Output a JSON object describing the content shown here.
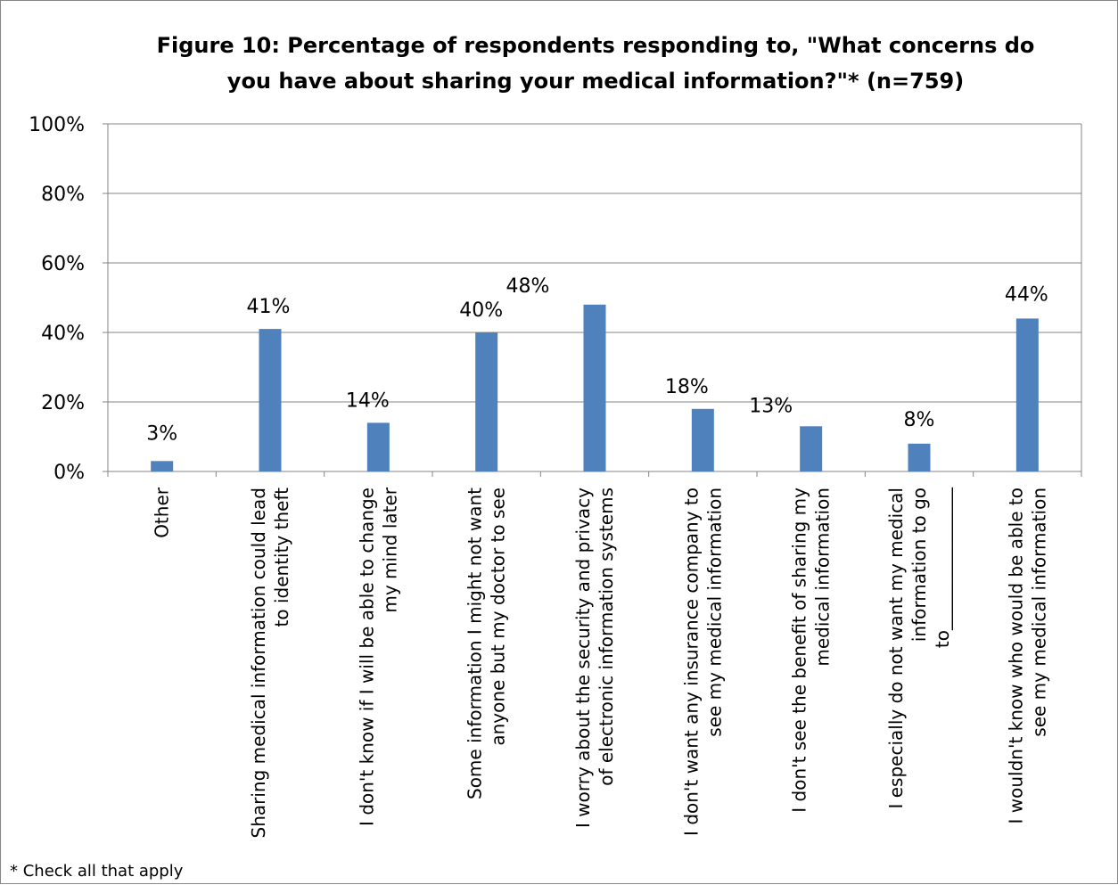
{
  "chart_data": {
    "type": "bar",
    "title": "Figure 10: Percentage of respondents responding to, \"What concerns do you have about sharing your medical information?\"* (n=759)",
    "title_lines": [
      "Figure 10: Percentage of respondents responding to, \"What concerns do",
      "you have about sharing your medical information?\"* (n=759)"
    ],
    "categories": [
      "Other",
      "Sharing medical information could lead to identity theft",
      "I don't know if I will be able to change my mind later",
      "Some information I might not want anyone but my doctor to see",
      "I worry about the security and privacy of electronic information systems",
      "I don't want any insurance company to see my medical information",
      "I don't see the benefit of sharing my medical information",
      "I especially do not want my medical information to go to________________",
      "I wouldn't know who would be able to see my medical information"
    ],
    "category_lines": [
      [
        "Other"
      ],
      [
        "Sharing medical information could lead",
        "to identity theft"
      ],
      [
        "I don't know if I will be able to change",
        "my mind later"
      ],
      [
        "Some information I might not want",
        "anyone but my doctor to see"
      ],
      [
        "I worry about the security and privacy",
        "of electronic information systems"
      ],
      [
        "I don't want any insurance company to",
        "see my medical information"
      ],
      [
        "I don't see the benefit of sharing my",
        "medical information"
      ],
      [
        "I especially do not want my medical",
        "information to go",
        "to________________"
      ],
      [
        "I wouldn't know who would be able to",
        "see my medical information"
      ]
    ],
    "values": [
      3,
      41,
      14,
      40,
      48,
      18,
      13,
      8,
      44
    ],
    "value_labels": [
      "3%",
      "41%",
      "14%",
      "40%",
      "48%",
      "18%",
      "13%",
      "8%",
      "44%"
    ],
    "ylim": [
      0,
      100
    ],
    "yticks": [
      0,
      20,
      40,
      60,
      80,
      100
    ],
    "ytick_labels": [
      "0%",
      "20%",
      "40%",
      "60%",
      "80%",
      "100%"
    ],
    "grid": true,
    "legend": "none",
    "bar_color": "#4F81BD",
    "footnote": "* Check all that apply"
  }
}
